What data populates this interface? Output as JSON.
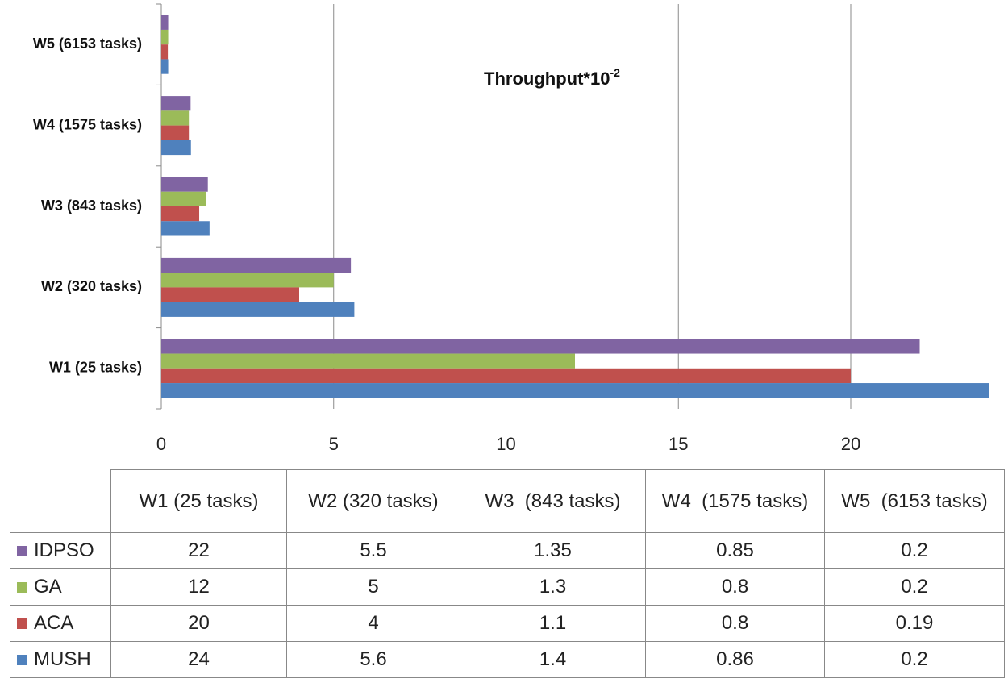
{
  "chart_data": {
    "type": "hbar",
    "title": "Throughput*10",
    "title_superscript": "-2",
    "categories": [
      "W1 (25 tasks)",
      "W2 (320 tasks)",
      "W3  (843 tasks)",
      "W4  (1575 tasks)",
      "W5  (6153 tasks)"
    ],
    "series": [
      {
        "name": "IDPSO",
        "color": "#8064a2",
        "values": [
          22,
          5.5,
          1.35,
          0.85,
          0.2
        ]
      },
      {
        "name": "GA",
        "color": "#9bbb59",
        "values": [
          12,
          5,
          1.3,
          0.8,
          0.2
        ]
      },
      {
        "name": "ACA",
        "color": "#c0504d",
        "values": [
          20,
          4,
          1.1,
          0.8,
          0.19
        ]
      },
      {
        "name": "MUSH",
        "color": "#4f81bd",
        "values": [
          24,
          5.6,
          1.4,
          0.86,
          0.2
        ]
      }
    ],
    "xlim": [
      0,
      24
    ],
    "xticks": [
      0,
      5,
      10,
      15,
      20
    ],
    "grid": true
  }
}
